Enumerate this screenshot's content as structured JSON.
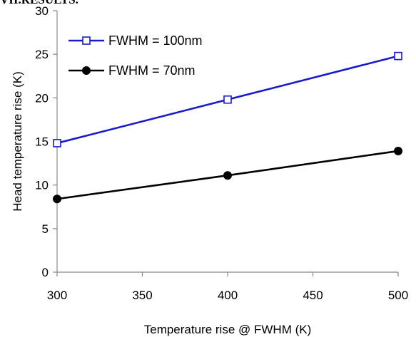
{
  "page": {
    "top_fragment": "VII.RESULTS."
  },
  "chart_data": {
    "type": "line",
    "x": [
      300,
      400,
      500
    ],
    "series": [
      {
        "name": "FWHM = 100nm",
        "values": [
          14.8,
          19.8,
          24.8
        ],
        "color": "#1a1acc",
        "marker": "open-square"
      },
      {
        "name": "FWHM = 70nm",
        "values": [
          8.4,
          11.1,
          13.9
        ],
        "color": "#000000",
        "marker": "filled-circle"
      }
    ],
    "xlabel": "Temperature rise @ FWHM (K)",
    "ylabel": "Head temperature rise (K)",
    "xlim": [
      300,
      500
    ],
    "ylim": [
      0,
      30
    ],
    "xticks": [
      300,
      350,
      400,
      450,
      500
    ],
    "yticks": [
      0,
      5,
      10,
      15,
      20,
      25,
      30
    ],
    "grid": false,
    "legend_position": "top-left"
  }
}
